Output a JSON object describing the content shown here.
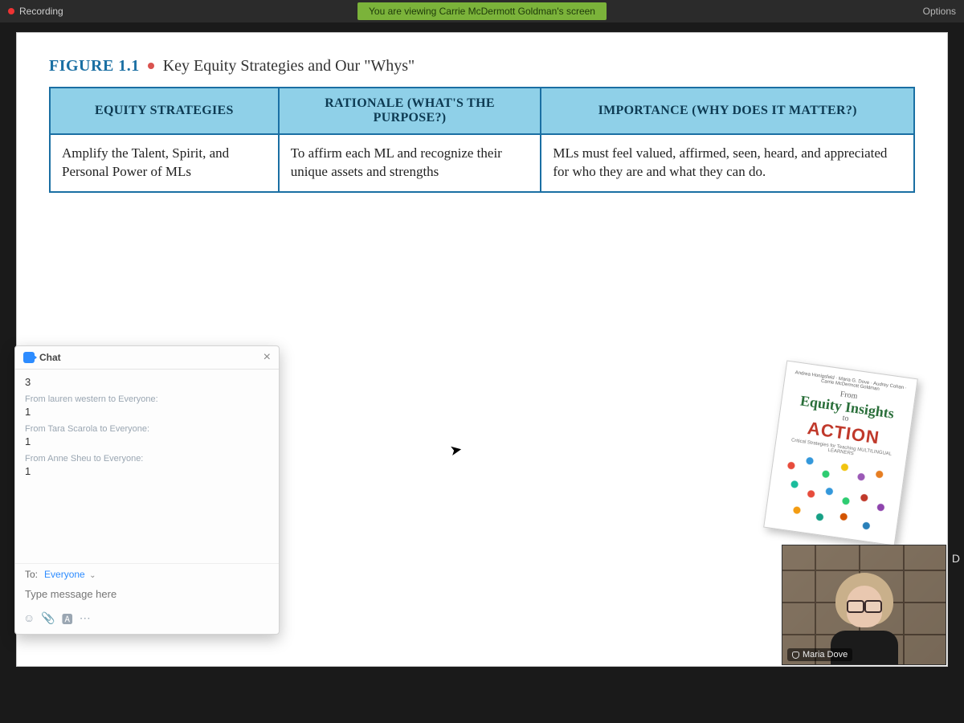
{
  "topbar": {
    "recording_label": "Recording",
    "share_banner": "You are viewing Carrie McDermott Goldman's screen",
    "options_label": "Options"
  },
  "slide": {
    "figure_label": "FIGURE 1.1",
    "figure_title": "Key Equity Strategies and Our \"Whys\"",
    "table": {
      "header_bg": "#8fd0e8",
      "border_color": "#1a6fa3",
      "columns": [
        "EQUITY STRATEGIES",
        "RATIONALE (WHAT'S THE PURPOSE?)",
        "IMPORTANCE (WHY DOES IT MATTER?)"
      ],
      "row": {
        "strategy": "Amplify the Talent, Spirit, and Personal Power of MLs",
        "rationale": "To affirm each ML and recognize their unique assets and strengths",
        "importance": "MLs must feel valued, affirmed, seen, heard, and appreciated for who they are and what they can do."
      }
    },
    "book": {
      "authors": "Andrea Honigsfeld · Maria G. Dove · Audrey Cohan · Carrie McDermott Goldman",
      "line1": "From",
      "line2": "Equity Insights",
      "line3": "to",
      "line4": "ACTION",
      "subtitle": "Critical Strategies for Teaching MULTILINGUAL LEARNERS"
    }
  },
  "chat": {
    "title": "Chat",
    "messages": [
      {
        "from": "",
        "text": "3"
      },
      {
        "from": "From lauren western to Everyone:",
        "text": "1"
      },
      {
        "from": "From Tara Scarola to Everyone:",
        "text": "1"
      },
      {
        "from": "From Anne Sheu to Everyone:",
        "text": "1"
      }
    ],
    "to_label": "To:",
    "to_value": "Everyone",
    "placeholder": "Type message here"
  },
  "video": {
    "speaker_name": "Maria Dove",
    "corner_letter": "D"
  }
}
